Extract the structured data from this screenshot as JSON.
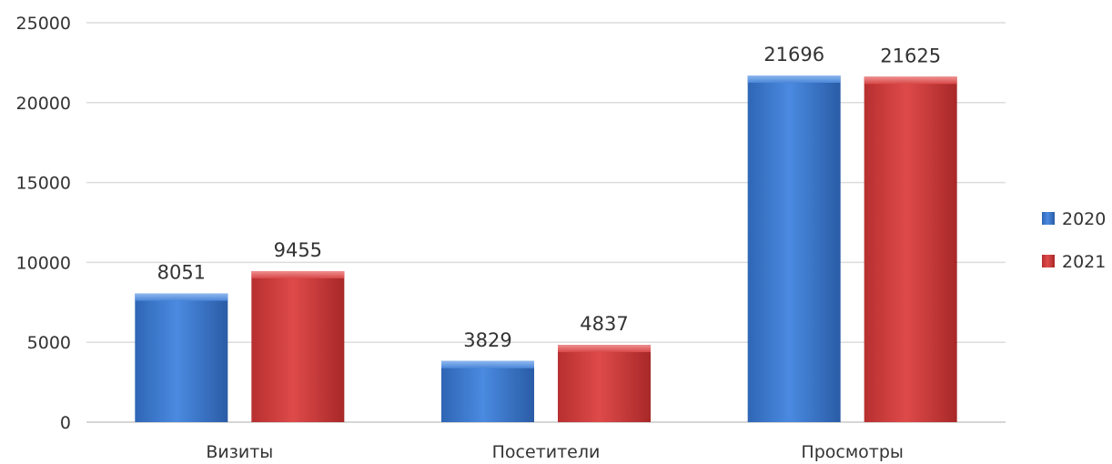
{
  "chart_data": {
    "type": "bar",
    "categories": [
      "Визиты",
      "Посетители",
      "Просмотры"
    ],
    "series": [
      {
        "name": "2020",
        "values": [
          8051,
          3829,
          21696
        ],
        "color": "#3f7fd4"
      },
      {
        "name": "2021",
        "values": [
          9455,
          4837,
          21625
        ],
        "color": "#d24040"
      }
    ],
    "ylim": [
      0,
      25000
    ],
    "yticks": [
      0,
      5000,
      10000,
      15000,
      20000,
      25000
    ],
    "grid": true,
    "legend": "right",
    "title": "",
    "xlabel": "",
    "ylabel": ""
  }
}
